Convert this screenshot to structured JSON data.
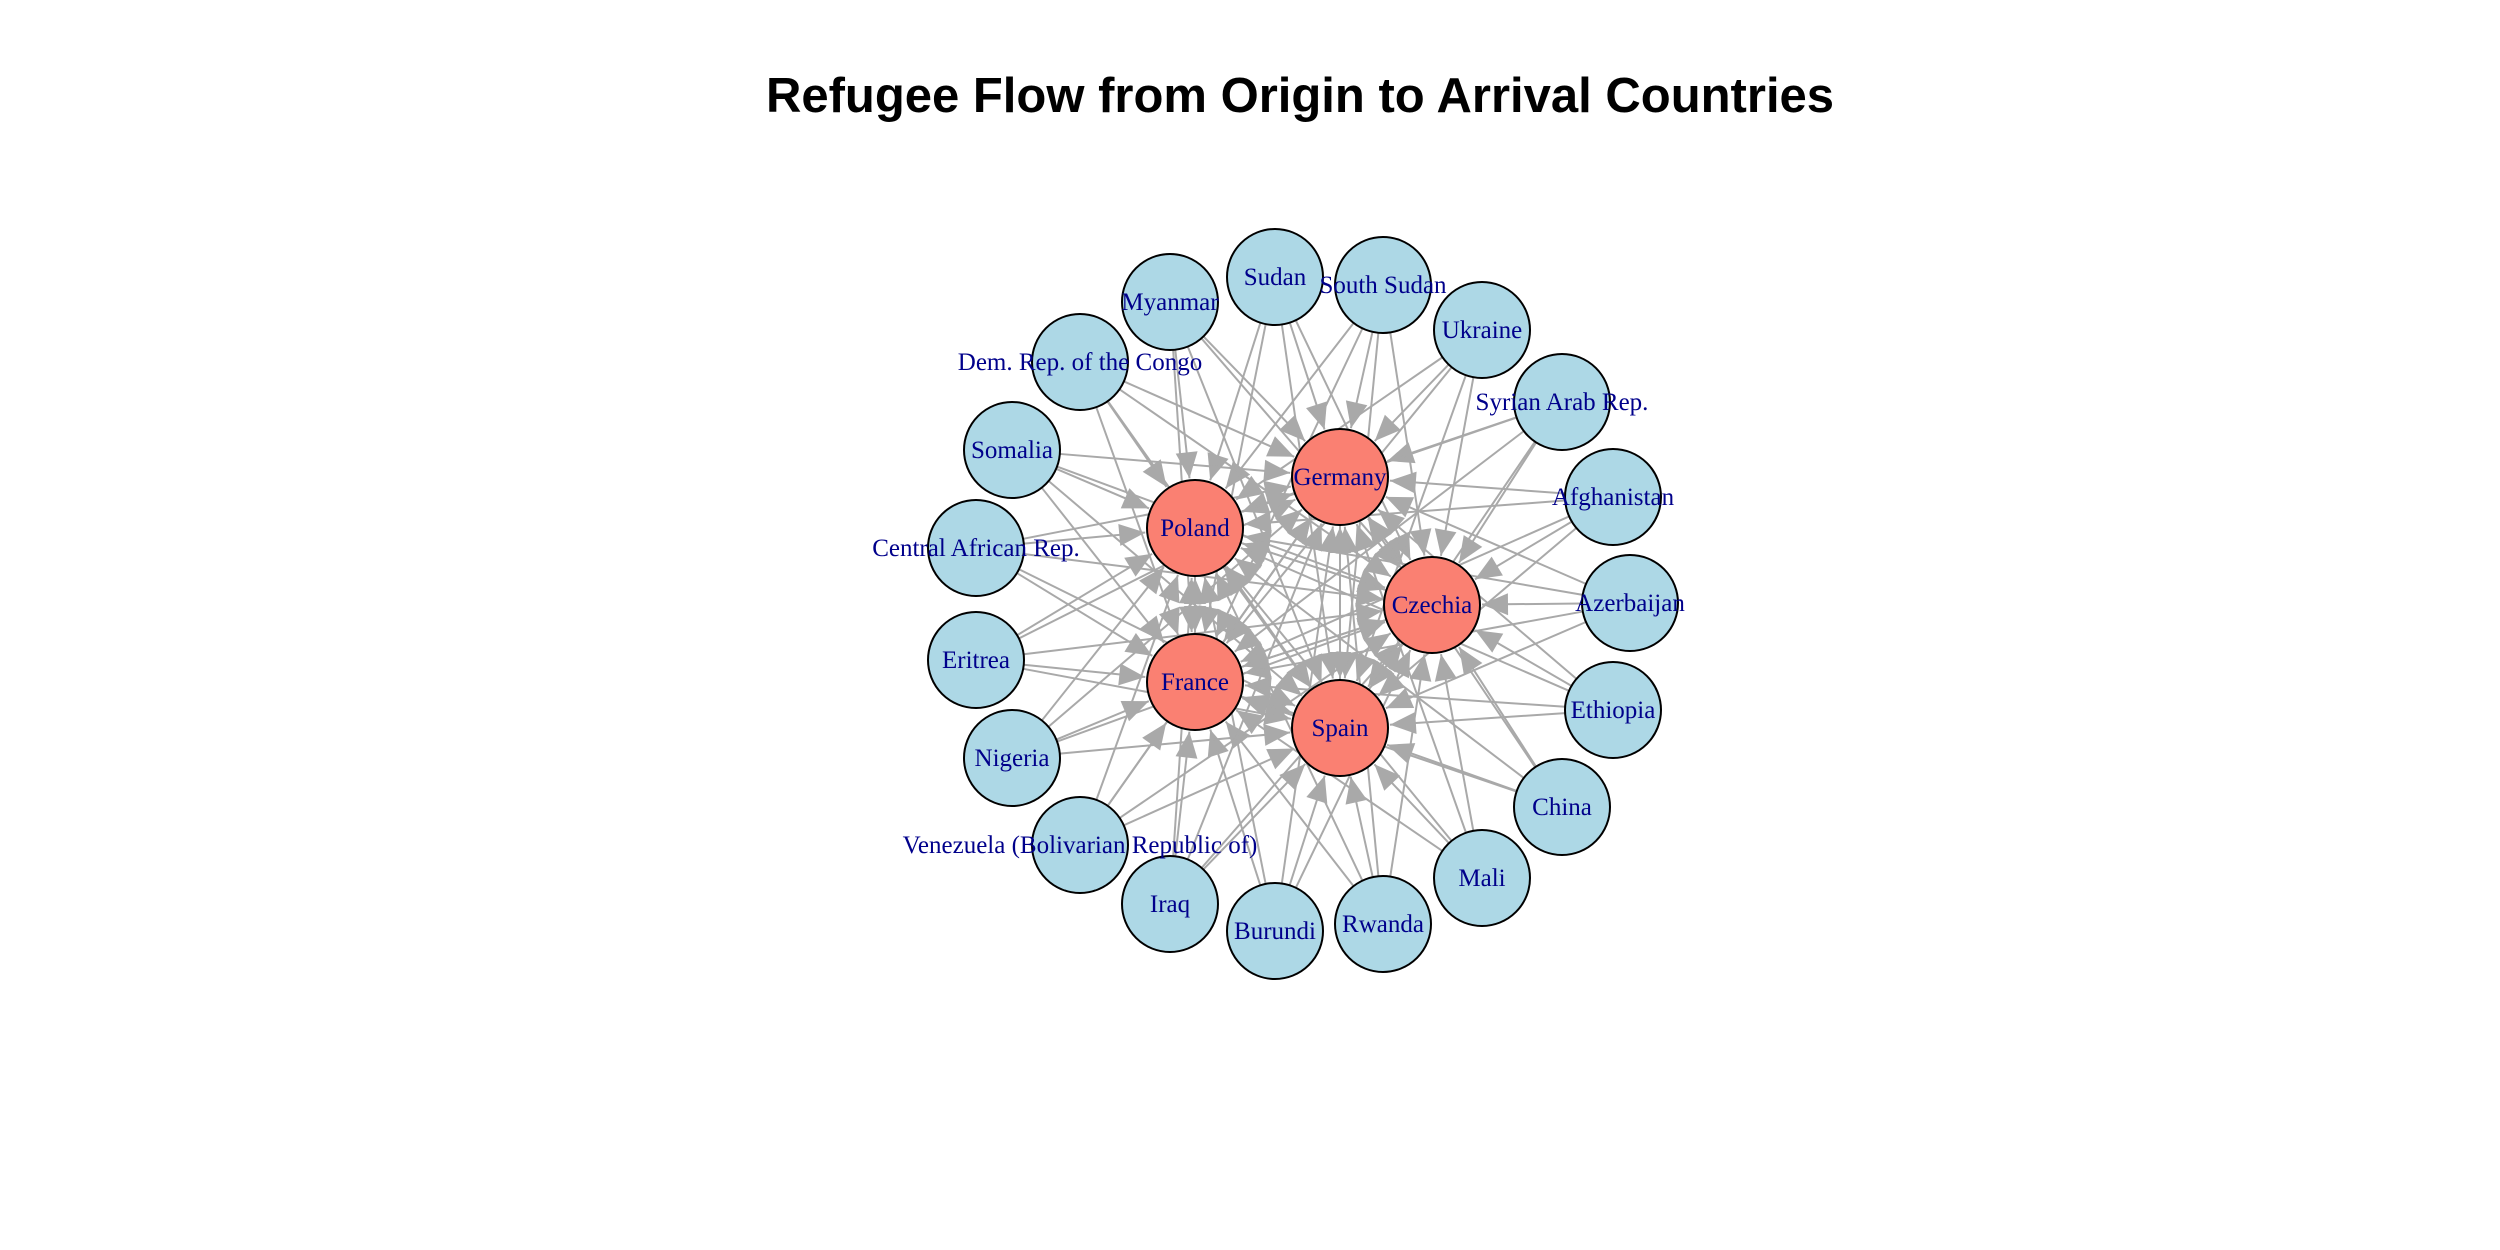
{
  "title": "Refugee Flow from Origin to Arrival Countries",
  "colors": {
    "origin_fill": "#add8e6",
    "arrival_fill": "#fa8072",
    "node_stroke": "#000000",
    "edge": "#a9a9a9",
    "label": "#00008b"
  },
  "arrival_countries": [
    "Germany",
    "Poland",
    "Czechia",
    "France",
    "Spain"
  ],
  "origin_countries": [
    "Sudan",
    "South Sudan",
    "Ukraine",
    "Syrian Arab Rep.",
    "Afghanistan",
    "Azerbaijan",
    "Ethiopia",
    "China",
    "Mali",
    "Rwanda",
    "Burundi",
    "Iraq",
    "Venezuela (Bolivarian Republic of)",
    "Nigeria",
    "Eritrea",
    "Central African Rep.",
    "Somalia",
    "Dem. Rep. of the Congo",
    "Myanmar"
  ],
  "edges_note_free": true
}
